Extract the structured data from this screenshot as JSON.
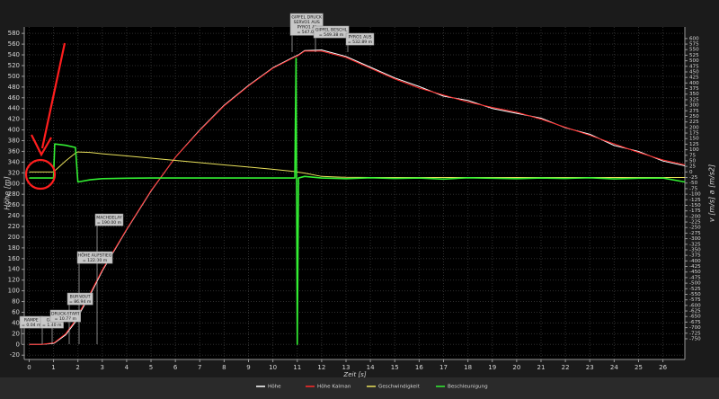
{
  "chart_data": {
    "type": "line",
    "x_label": "Zeit [s]",
    "y_label": "Höhe [m]",
    "y2_label": "v [m/s]  a [m/s2]",
    "xlim": [
      -0.2,
      26.9
    ],
    "ylim": [
      -28,
      592
    ],
    "y2lim": [
      -843,
      652
    ],
    "xticks": [
      0,
      1,
      2,
      3,
      4,
      5,
      6,
      7,
      8,
      9,
      10,
      11,
      12,
      13,
      14,
      15,
      16,
      17,
      18,
      19,
      20,
      21,
      22,
      23,
      24,
      25,
      26
    ],
    "yticks": [
      -20,
      0,
      20,
      40,
      60,
      80,
      100,
      120,
      140,
      160,
      180,
      200,
      220,
      240,
      260,
      280,
      300,
      320,
      340,
      360,
      380,
      400,
      420,
      440,
      460,
      480,
      500,
      520,
      540,
      560,
      580
    ],
    "y2ticks": [
      600,
      575,
      550,
      525,
      500,
      475,
      450,
      425,
      400,
      375,
      350,
      325,
      300,
      275,
      250,
      225,
      200,
      175,
      150,
      125,
      100,
      75,
      50,
      25,
      0,
      -25,
      -50,
      -75,
      -100,
      -125,
      -150,
      -175,
      -200,
      -225,
      -250,
      -275,
      -300,
      -325,
      -350,
      -375,
      -400,
      -425,
      -450,
      -475,
      -500,
      -525,
      -550,
      -575,
      -600,
      -625,
      -650,
      -675,
      -700,
      -725,
      -750
    ],
    "grid": true,
    "x": [
      0,
      0.5,
      1,
      1.05,
      1.5,
      1.9,
      2,
      2.5,
      3,
      4,
      5,
      6,
      7,
      8,
      9,
      10,
      10.9,
      10.95,
      11,
      11.05,
      11.3,
      12,
      13,
      14,
      15,
      16,
      17,
      18,
      19,
      20,
      21,
      22,
      23,
      24,
      25,
      26,
      26.9
    ],
    "series": [
      {
        "name": "Höhe",
        "color": "#ffffff",
        "axis": "y",
        "values": [
          0,
          0,
          2,
          3,
          18,
          42,
          52,
          92,
          137,
          214,
          286,
          349,
          400,
          446,
          483,
          516,
          537,
          538,
          539,
          540,
          548,
          549,
          537,
          517,
          497,
          481,
          463,
          455,
          440,
          431,
          422,
          404,
          392,
          371,
          360,
          342,
          333
        ]
      },
      {
        "name": "Höhe Kalman",
        "color": "#ff2a2a",
        "axis": "y",
        "values": [
          0,
          0,
          3,
          4,
          20,
          45,
          55,
          95,
          139,
          215,
          287,
          349,
          399,
          445,
          482,
          515,
          536,
          537,
          538,
          539,
          547,
          547,
          535,
          515,
          495,
          478,
          465,
          452,
          442,
          433,
          420,
          405,
          390,
          374,
          358,
          344,
          335
        ]
      },
      {
        "name": "Geschwindigkeit",
        "color": "#e8e05a",
        "axis": "y2",
        "values": [
          0,
          0,
          0,
          5,
          50,
          85,
          90,
          88,
          82,
          72,
          62,
          52,
          42,
          32,
          22,
          12,
          2,
          1,
          0,
          -1,
          -5,
          -20,
          -24,
          -25,
          -25,
          -25,
          -25,
          -25,
          -25,
          -25,
          -25,
          -25,
          -25,
          -25,
          -25,
          -25,
          -25
        ]
      },
      {
        "name": "Beschleunigung",
        "color": "#33ee33",
        "axis": "y2",
        "values": [
          -27,
          -27,
          -27,
          126,
          120,
          110,
          -45,
          -35,
          -30,
          -28,
          -27,
          -27,
          -27,
          -27,
          -27,
          -27,
          -27,
          511,
          -775,
          -27,
          -20,
          -27,
          -30,
          -26,
          -29,
          -27,
          -32,
          -26,
          -28,
          -30,
          -27,
          -29,
          -26,
          -31,
          -28,
          -27,
          -45
        ]
      }
    ],
    "annotations": [
      [
        "RAMPE",
        "= 0.04 m"
      ],
      [
        "G-MR",
        "= 1.40 m"
      ],
      [
        "DRUCK-START",
        "= 10.77 m"
      ],
      [
        "BURNOUT",
        "= 86.94 m"
      ],
      [
        "HÖHE AUFSTIEG",
        "= 122.00 m"
      ],
      [
        "MACHDELAY",
        "= 190.00 m"
      ],
      [
        "GIPFEL DRUCK",
        "SERVO1 AUS",
        "PYRO1 AI",
        "= 547.07"
      ],
      [
        "GIPFEL BESCHL",
        "= 549.38 m"
      ],
      [
        "PYRO1 AUS",
        "= 532.89 m"
      ]
    ]
  }
}
